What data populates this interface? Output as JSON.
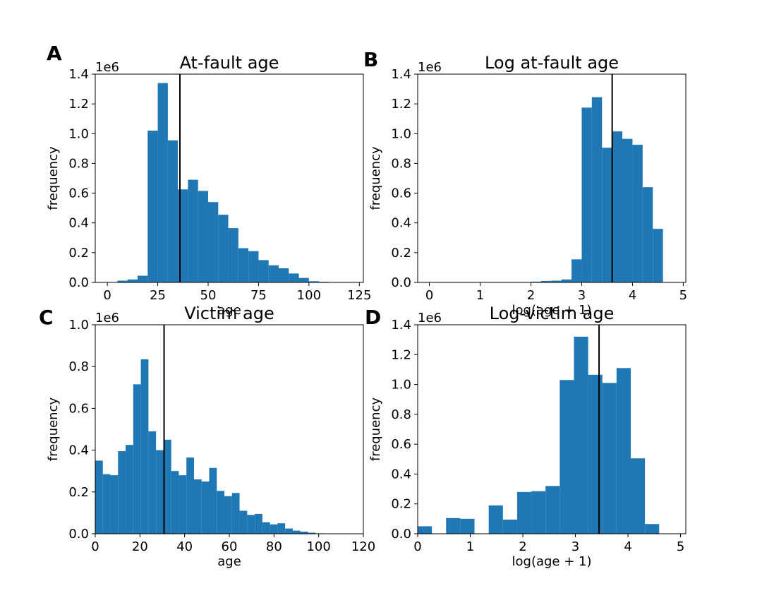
{
  "chart_data": [
    {
      "panel": "A",
      "type": "bar",
      "title": "At-fault age",
      "xlabel": "age",
      "ylabel": "frequency",
      "y_offset_text": "1e6",
      "xlim": [
        -6,
        127
      ],
      "ylim": [
        0,
        1400000
      ],
      "xticks": [
        0,
        25,
        50,
        75,
        100,
        125
      ],
      "yticks": [
        0,
        200000,
        400000,
        600000,
        800000,
        1000000,
        1200000,
        1400000
      ],
      "ytick_labels": [
        "0.0",
        "0.2",
        "0.4",
        "0.6",
        "0.8",
        "1.0",
        "1.2",
        "1.4"
      ],
      "bin_edges": [
        0,
        5,
        10,
        15,
        20,
        25,
        30,
        35,
        40,
        45,
        50,
        55,
        60,
        65,
        70,
        75,
        80,
        85,
        90,
        95,
        100,
        105,
        110,
        115,
        120
      ],
      "values": [
        2000,
        12000,
        20000,
        45000,
        1020000,
        1340000,
        955000,
        625000,
        690000,
        615000,
        540000,
        455000,
        365000,
        230000,
        210000,
        150000,
        115000,
        95000,
        60000,
        30000,
        8000,
        4000,
        2000,
        1000
      ],
      "mean_line": 36,
      "color": "#1f77b4"
    },
    {
      "panel": "B",
      "type": "bar",
      "title": "Log at-fault age",
      "xlabel": "log(age + 1)",
      "ylabel": "frequency",
      "y_offset_text": "1e6",
      "xlim": [
        -0.23,
        5.05
      ],
      "ylim": [
        0,
        1400000
      ],
      "xticks": [
        0,
        1,
        2,
        3,
        4,
        5
      ],
      "yticks": [
        0,
        200000,
        400000,
        600000,
        800000,
        1000000,
        1200000,
        1400000
      ],
      "ytick_labels": [
        "0.0",
        "0.2",
        "0.4",
        "0.6",
        "0.8",
        "1.0",
        "1.2",
        "1.4"
      ],
      "bin_edges": [
        0,
        0.2,
        0.4,
        0.6,
        0.8,
        1.0,
        1.2,
        1.4,
        1.6,
        1.8,
        2.0,
        2.2,
        2.4,
        2.6,
        2.8,
        3.0,
        3.2,
        3.4,
        3.6,
        3.8,
        4.0,
        4.2,
        4.4,
        4.6
      ],
      "values": [
        0,
        0,
        0,
        0,
        0,
        0,
        0,
        0,
        0,
        0,
        5000,
        10000,
        12000,
        20000,
        155000,
        1175000,
        1245000,
        905000,
        1015000,
        965000,
        925000,
        640000,
        360000
      ],
      "mean_line": 3.6,
      "color": "#1f77b4"
    },
    {
      "panel": "C",
      "type": "bar",
      "title": "Victim age",
      "xlabel": "age",
      "ylabel": "frequency",
      "y_offset_text": "1e6",
      "xlim": [
        0,
        120
      ],
      "ylim": [
        0,
        1000000
      ],
      "xticks": [
        0,
        20,
        40,
        60,
        80,
        100,
        120
      ],
      "yticks": [
        0,
        200000,
        400000,
        600000,
        800000,
        1000000
      ],
      "ytick_labels": [
        "0.0",
        "0.2",
        "0.4",
        "0.6",
        "0.8",
        "1.0"
      ],
      "bin_edges": [
        0,
        3.4,
        6.8,
        10.2,
        13.6,
        17,
        20.4,
        23.8,
        27.2,
        30.6,
        34,
        37.4,
        40.8,
        44.2,
        47.6,
        51,
        54.4,
        57.8,
        61.2,
        64.6,
        68,
        71.4,
        74.8,
        78.2,
        81.6,
        85,
        88.4,
        91.8,
        95.2,
        98.6,
        102,
        105.4,
        108.8,
        112.2,
        115.6,
        119
      ],
      "values": [
        350000,
        285000,
        280000,
        395000,
        425000,
        715000,
        835000,
        490000,
        400000,
        450000,
        300000,
        280000,
        365000,
        260000,
        250000,
        315000,
        205000,
        180000,
        195000,
        110000,
        90000,
        95000,
        55000,
        45000,
        50000,
        25000,
        15000,
        10000,
        5000,
        2000,
        1000,
        500,
        500,
        500,
        500
      ],
      "mean_line": 30.8,
      "color": "#1f77b4"
    },
    {
      "panel": "D",
      "type": "bar",
      "title": "Log-victim age",
      "xlabel": "log(age + 1)",
      "ylabel": "frequency",
      "y_offset_text": "1e6",
      "xlim": [
        0,
        5.1
      ],
      "ylim": [
        0,
        1400000
      ],
      "xticks": [
        0,
        1,
        2,
        3,
        4,
        5
      ],
      "yticks": [
        0,
        200000,
        400000,
        600000,
        800000,
        1000000,
        1200000,
        1400000
      ],
      "ytick_labels": [
        "0.0",
        "0.2",
        "0.4",
        "0.6",
        "0.8",
        "1.0",
        "1.2",
        "1.4"
      ],
      "bin_edges": [
        0,
        0.2702,
        0.5404,
        0.8106,
        1.0808,
        1.351,
        1.6212,
        1.8914,
        2.1616,
        2.4318,
        2.702,
        2.9722,
        3.2424,
        3.5126,
        3.7828,
        4.053,
        4.3232,
        4.5934
      ],
      "values": [
        50000,
        0,
        105000,
        100000,
        0,
        190000,
        95000,
        280000,
        285000,
        320000,
        1030000,
        1320000,
        1065000,
        1010000,
        1110000,
        505000,
        65000
      ],
      "mean_line": 3.45,
      "color": "#1f77b4"
    }
  ],
  "panel_labels": [
    "A",
    "B",
    "C",
    "D"
  ]
}
